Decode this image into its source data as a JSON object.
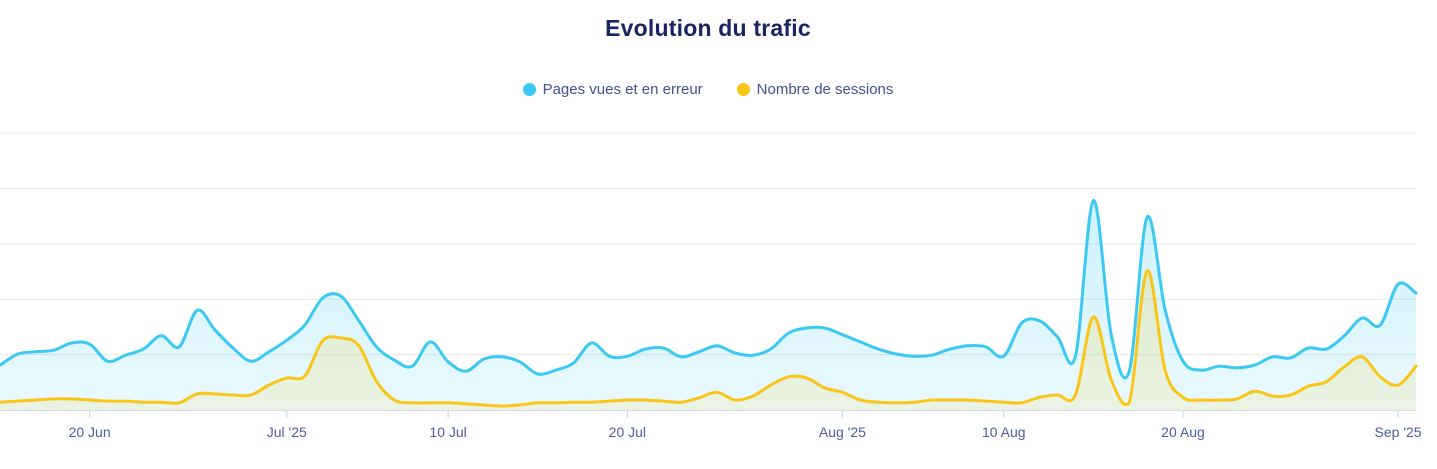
{
  "colors": {
    "title": "#1a2464",
    "legend_text": "#42508c",
    "axis_label": "#4e5b9e",
    "grid_line": "#e8e8e8",
    "axis_line": "#d6dbe8",
    "tick_mark": "#ccd2e3",
    "background": "#ffffff",
    "series_blue": "#3bc9f3",
    "series_yellow": "#f7c616"
  },
  "chart_data": {
    "type": "area",
    "title": "Evolution du trafic",
    "xlabel": "",
    "ylabel": "",
    "y_axis_labels_visible": false,
    "gridlines": 6,
    "units_per_gridline": 100,
    "ylim": [
      0,
      500
    ],
    "legend_position": "top-center",
    "dates": [
      "2025-06-15",
      "2025-06-16",
      "2025-06-17",
      "2025-06-18",
      "2025-06-19",
      "2025-06-20",
      "2025-06-21",
      "2025-06-22",
      "2025-06-23",
      "2025-06-24",
      "2025-06-25",
      "2025-06-26",
      "2025-06-27",
      "2025-06-28",
      "2025-06-29",
      "2025-06-30",
      "2025-07-01",
      "2025-07-02",
      "2025-07-03",
      "2025-07-04",
      "2025-07-05",
      "2025-07-06",
      "2025-07-07",
      "2025-07-08",
      "2025-07-09",
      "2025-07-10",
      "2025-07-11",
      "2025-07-12",
      "2025-07-13",
      "2025-07-14",
      "2025-07-15",
      "2025-07-16",
      "2025-07-17",
      "2025-07-18",
      "2025-07-19",
      "2025-07-20",
      "2025-07-21",
      "2025-07-22",
      "2025-07-23",
      "2025-07-24",
      "2025-07-25",
      "2025-07-26",
      "2025-07-27",
      "2025-07-28",
      "2025-07-29",
      "2025-07-30",
      "2025-07-31",
      "2025-08-01",
      "2025-08-02",
      "2025-08-03",
      "2025-08-04",
      "2025-08-05",
      "2025-08-06",
      "2025-08-07",
      "2025-08-08",
      "2025-08-09",
      "2025-08-10",
      "2025-08-11",
      "2025-08-12",
      "2025-08-13",
      "2025-08-14",
      "2025-08-15",
      "2025-08-16",
      "2025-08-17",
      "2025-08-18",
      "2025-08-19",
      "2025-08-20",
      "2025-08-21",
      "2025-08-22",
      "2025-08-23",
      "2025-08-24",
      "2025-08-25",
      "2025-08-26",
      "2025-08-27",
      "2025-08-28",
      "2025-08-29",
      "2025-08-30",
      "2025-08-31",
      "2025-09-01",
      "2025-09-02"
    ],
    "x_ticks": [
      {
        "label": "20 Jun",
        "date": "2025-06-20"
      },
      {
        "label": "Jul '25",
        "date": "2025-07-01"
      },
      {
        "label": "10 Jul",
        "date": "2025-07-10"
      },
      {
        "label": "20 Jul",
        "date": "2025-07-20"
      },
      {
        "label": "Aug '25",
        "date": "2025-08-01"
      },
      {
        "label": "10 Aug",
        "date": "2025-08-10"
      },
      {
        "label": "20 Aug",
        "date": "2025-08-20"
      },
      {
        "label": "Sep '25",
        "date": "2025-09-01"
      }
    ],
    "series": [
      {
        "name": "Pages vues et en erreur",
        "color": "#3bc9f3",
        "values": [
          81,
          101,
          105,
          108,
          121,
          119,
          88,
          99,
          110,
          134,
          114,
          180,
          144,
          112,
          88,
          105,
          126,
          153,
          202,
          206,
          162,
          114,
          90,
          79,
          123,
          87,
          70,
          92,
          96,
          87,
          65,
          72,
          85,
          121,
          97,
          97,
          110,
          112,
          96,
          105,
          116,
          103,
          99,
          110,
          139,
          148,
          148,
          136,
          123,
          110,
          101,
          97,
          99,
          110,
          116,
          114,
          97,
          157,
          161,
          132,
          97,
          378,
          135,
          70,
          348,
          181,
          88,
          72,
          79,
          76,
          81,
          96,
          94,
          112,
          110,
          134,
          166,
          153,
          227,
          211
        ]
      },
      {
        "name": "Nombre de sessions",
        "color": "#f7c616",
        "values": [
          14,
          16,
          18,
          20,
          20,
          18,
          16,
          16,
          14,
          14,
          13,
          29,
          29,
          27,
          27,
          45,
          58,
          61,
          125,
          130,
          117,
          52,
          18,
          13,
          13,
          13,
          11,
          9,
          7,
          9,
          13,
          13,
          14,
          14,
          16,
          18,
          18,
          16,
          14,
          22,
          32,
          18,
          25,
          45,
          60,
          58,
          40,
          32,
          18,
          14,
          13,
          14,
          18,
          18,
          18,
          16,
          14,
          13,
          23,
          27,
          27,
          168,
          54,
          13,
          251,
          72,
          23,
          18,
          18,
          20,
          34,
          25,
          27,
          43,
          51,
          78,
          96,
          60,
          45,
          79
        ]
      }
    ]
  }
}
